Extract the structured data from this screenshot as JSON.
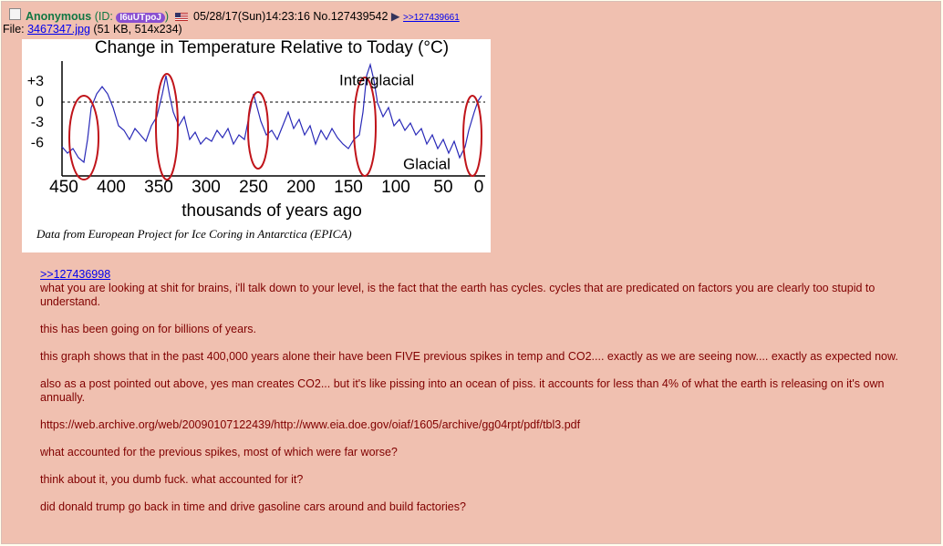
{
  "post": {
    "name": "Anonymous",
    "id_prefix": "(ID: ",
    "id": "I6uUTpoJ",
    "id_suffix": ")",
    "datetime": "05/28/17(Sun)14:23:16",
    "number": "No.127439542",
    "backlink_arrow": "▶",
    "backlink": ">>127439661",
    "file_label": "File: ",
    "file_name": "3467347.jpg",
    "file_info": "(51 KB, 514x234)",
    "image": {
      "title": "Change in Temperature Relative to Today (°C)",
      "yticks": [
        "+3",
        "0",
        "-3",
        "-6"
      ],
      "xticks": [
        "450",
        "400",
        "350",
        "300",
        "250",
        "200",
        "150",
        "100",
        "50",
        "0"
      ],
      "xlabel": "thousands of years ago",
      "annotation_top": "Interglacial",
      "annotation_bottom": "Glacial",
      "caption": "Data from European Project for Ice Coring in Antarctica (EPICA)"
    },
    "quote": ">>127436998",
    "paragraphs": [
      "what you are looking at shit for brains, i'll talk down to your level, is the fact that the earth has cycles. cycles that are predicated on factors you are clearly too stupid to understand.",
      "this has been going on for billions of years.",
      "this graph shows that in the past 400,000 years alone their have been FIVE previous spikes in temp and CO2.... exactly as we are seeing now.... exactly as expected now.",
      "also as a post pointed out above, yes man creates CO2... but it's like pissing into an ocean of piss. it accounts for less than 4% of what the earth is releasing on it's own annually.",
      "https://web.archive.org/web/20090107122439/http://www.eia.doe.gov/oiaf/1605/archive/gg04rpt/pdf/tbl3.pdf",
      "what accounted for the previous spikes, most of which were far worse?",
      "think about it, you dumb fuck. what accounted for it?",
      "did donald trump go back in time and drive gasoline cars around and build factories?"
    ]
  }
}
